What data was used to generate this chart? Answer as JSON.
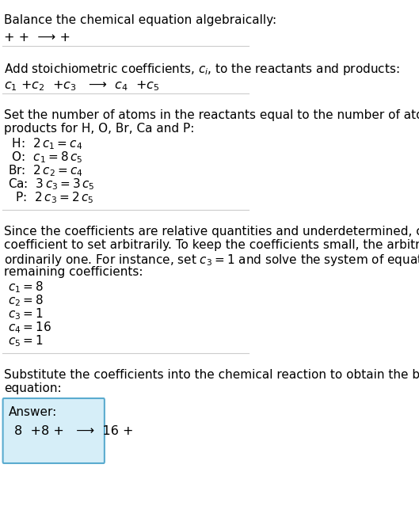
{
  "title": "Balance the chemical equation algebraically:",
  "line1": "+ +  ⟶ +",
  "section1_title": "Add stoichiometric coefficients, $c_i$, to the reactants and products:",
  "line2": "$c_1$ +$c_2$  +$c_3$   ⟶  $c_4$  +$c_5$",
  "section2_title": "Set the number of atoms in the reactants equal to the number of atoms in the\nproducts for H, O, Br, Ca and P:",
  "equations": [
    " H:  $2\\,c_1 = c_4$",
    " O:  $c_1 = 8\\,c_5$",
    "Br:  $2\\,c_2 = c_4$",
    "Ca:  $3\\,c_3 = 3\\,c_5$",
    "  P:  $2\\,c_3 = 2\\,c_5$"
  ],
  "section3_text": "Since the coefficients are relative quantities and underdetermined, choose a\ncoefficient to set arbitrarily. To keep the coefficients small, the arbitrary value is\nordinarily one. For instance, set $c_3 = 1$ and solve the system of equations for the\nremaining coefficients:",
  "solution_lines": [
    "$c_1 = 8$",
    "$c_2 = 8$",
    "$c_3 = 1$",
    "$c_4 = 16$",
    "$c_5 = 1$"
  ],
  "section4_text": "Substitute the coefficients into the chemical reaction to obtain the balanced\nequation:",
  "answer_label": "Answer:",
  "answer_equation": "8  +8 +   ⟶  16 +",
  "bg_color": "#ffffff",
  "text_color": "#000000",
  "separator_color": "#cccccc",
  "answer_box_color": "#d6eef8",
  "answer_box_border": "#5aabcf"
}
